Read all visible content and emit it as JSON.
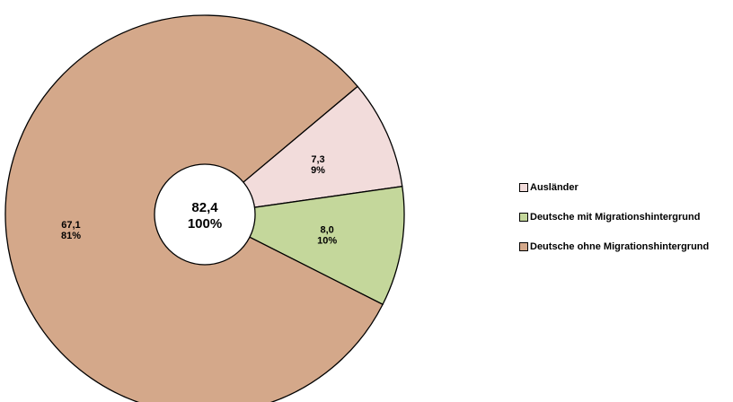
{
  "chart_data": {
    "type": "pie",
    "style": "donut",
    "center": {
      "value": "82,4",
      "percent": "100%"
    },
    "slices": [
      {
        "name": "Ausländer",
        "value": 7.3,
        "value_label": "7,3",
        "percent_label": "9%",
        "color": "#f2dcdb"
      },
      {
        "name": "Deutsche mit Migrationshintergrund",
        "value": 8.0,
        "value_label": "8,0",
        "percent_label": "10%",
        "color": "#c4d79b"
      },
      {
        "name": "Deutsche ohne Migrationshintergrund",
        "value": 67.1,
        "value_label": "67,1",
        "percent_label": "81%",
        "color": "#d4a88a"
      }
    ],
    "legend_position": "right"
  }
}
